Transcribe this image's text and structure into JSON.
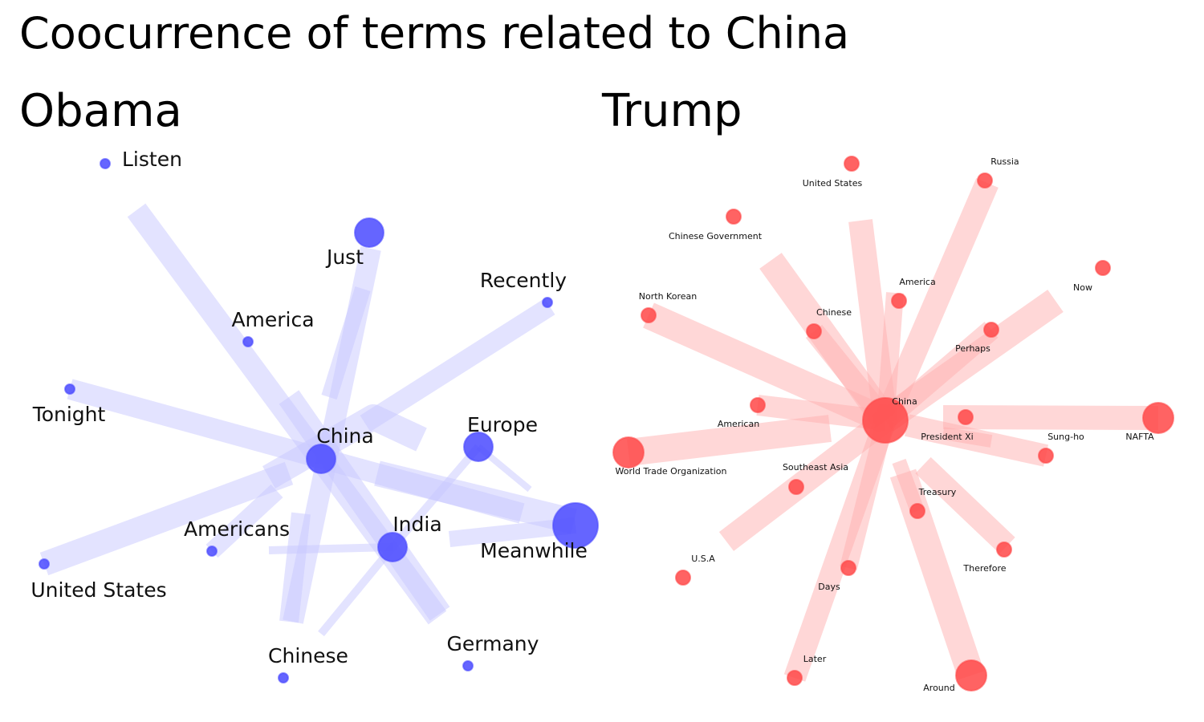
{
  "title": "Coocurrence of terms related to China",
  "colors": {
    "obama_node": "#4a4aff",
    "obama_edge": "#c8c8ff",
    "trump_node": "#ff4848",
    "trump_edge": "#ffb0b0"
  },
  "panels": [
    {
      "id": "obama",
      "title": "Obama",
      "nodes": [
        {
          "id": "Listen",
          "label": "Listen",
          "weight": 1
        },
        {
          "id": "Just",
          "label": "Just",
          "weight": 4
        },
        {
          "id": "Recently",
          "label": "Recently",
          "weight": 1
        },
        {
          "id": "America",
          "label": "America",
          "weight": 1
        },
        {
          "id": "Tonight",
          "label": "Tonight",
          "weight": 1
        },
        {
          "id": "China",
          "label": "China",
          "weight": 4
        },
        {
          "id": "Europe",
          "label": "Europe",
          "weight": 4
        },
        {
          "id": "Americans",
          "label": "Americans",
          "weight": 1
        },
        {
          "id": "India",
          "label": "India",
          "weight": 4
        },
        {
          "id": "Meanwhile",
          "label": "Meanwhile",
          "weight": 6
        },
        {
          "id": "United States",
          "label": "United States",
          "weight": 1
        },
        {
          "id": "Chinese",
          "label": "Chinese",
          "weight": 1
        },
        {
          "id": "Germany",
          "label": "Germany",
          "weight": 1
        }
      ]
    },
    {
      "id": "trump",
      "title": "Trump",
      "nodes": [
        {
          "id": "United States",
          "label": "United States",
          "weight": 1
        },
        {
          "id": "Russia",
          "label": "Russia",
          "weight": 1
        },
        {
          "id": "Chinese Government",
          "label": "Chinese Government",
          "weight": 1
        },
        {
          "id": "Now",
          "label": "Now",
          "weight": 1
        },
        {
          "id": "America",
          "label": "America",
          "weight": 1
        },
        {
          "id": "North Korean",
          "label": "North Korean",
          "weight": 1
        },
        {
          "id": "Chinese",
          "label": "Chinese",
          "weight": 1
        },
        {
          "id": "Perhaps",
          "label": "Perhaps",
          "weight": 1
        },
        {
          "id": "China",
          "label": "China",
          "weight": 8
        },
        {
          "id": "American",
          "label": "American",
          "weight": 1
        },
        {
          "id": "President Xi",
          "label": "President Xi",
          "weight": 1
        },
        {
          "id": "Sung-ho",
          "label": "Sung-ho",
          "weight": 1
        },
        {
          "id": "NAFTA",
          "label": "NAFTA",
          "weight": 4
        },
        {
          "id": "World Trade Organization",
          "label": "World Trade Organization",
          "weight": 4
        },
        {
          "id": "Southeast Asia",
          "label": "Southeast Asia",
          "weight": 1
        },
        {
          "id": "Treasury",
          "label": "Treasury",
          "weight": 1
        },
        {
          "id": "U.S.A",
          "label": "U.S.A",
          "weight": 1
        },
        {
          "id": "Therefore",
          "label": "Therefore",
          "weight": 1
        },
        {
          "id": "Days",
          "label": "Days",
          "weight": 1
        },
        {
          "id": "Later",
          "label": "Later",
          "weight": 1
        },
        {
          "id": "Around",
          "label": "Around",
          "weight": 4
        }
      ]
    }
  ]
}
